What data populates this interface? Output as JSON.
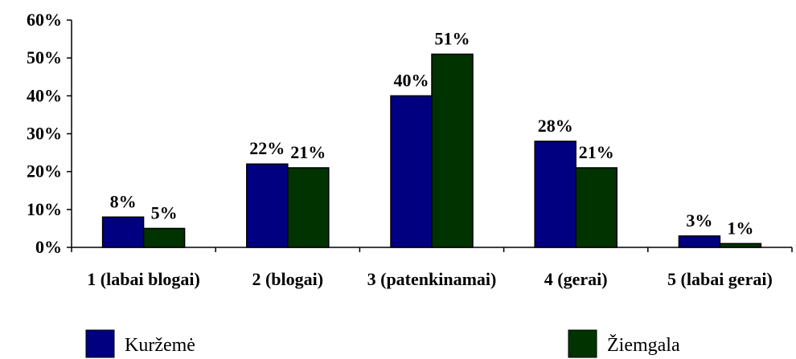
{
  "chart_data": {
    "type": "bar",
    "title": "",
    "xlabel": "",
    "ylabel": "",
    "ylim": [
      0,
      60
    ],
    "y_ticks": [
      "0%",
      "10%",
      "20%",
      "30%",
      "40%",
      "50%",
      "60%"
    ],
    "grid": false,
    "legend_position": "bottom",
    "categories": [
      "1 (labai blogai)",
      "2 (blogai)",
      "3 (patenkinamai)",
      "4 (gerai)",
      "5 (labai gerai)"
    ],
    "series": [
      {
        "name": "Kuržemė",
        "color": "#000080",
        "values": [
          8,
          22,
          40,
          28,
          3
        ],
        "labels": [
          "8%",
          "22%",
          "40%",
          "28%",
          "3%"
        ]
      },
      {
        "name": "Žiemgala",
        "color": "#003300",
        "values": [
          5,
          21,
          51,
          21,
          1
        ],
        "labels": [
          "5%",
          "21%",
          "51%",
          "21%",
          "1%"
        ]
      }
    ]
  }
}
